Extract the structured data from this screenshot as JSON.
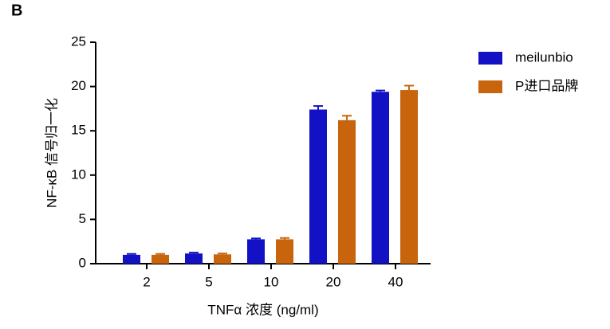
{
  "panel_label": "B",
  "chart_data": {
    "type": "bar",
    "y_label": "NF-κB 信号归一化",
    "x_label": "TNFα 浓度 (ng/ml)",
    "categories": [
      "2",
      "5",
      "10",
      "20",
      "40"
    ],
    "series": [
      {
        "name": "meilunbio",
        "color": "#1212c4",
        "values": [
          1.0,
          1.15,
          2.75,
          17.4,
          19.4
        ],
        "errors": [
          0.1,
          0.1,
          0.1,
          0.4,
          0.15
        ]
      },
      {
        "name": "P进口品牌",
        "color": "#c8650c",
        "values": [
          1.0,
          1.05,
          2.75,
          16.2,
          19.6
        ],
        "errors": [
          0.1,
          0.1,
          0.15,
          0.5,
          0.5
        ]
      }
    ],
    "ylim": [
      0,
      25
    ],
    "yticks": [
      0,
      5,
      10,
      15,
      20,
      25
    ],
    "legend": "top-right"
  }
}
